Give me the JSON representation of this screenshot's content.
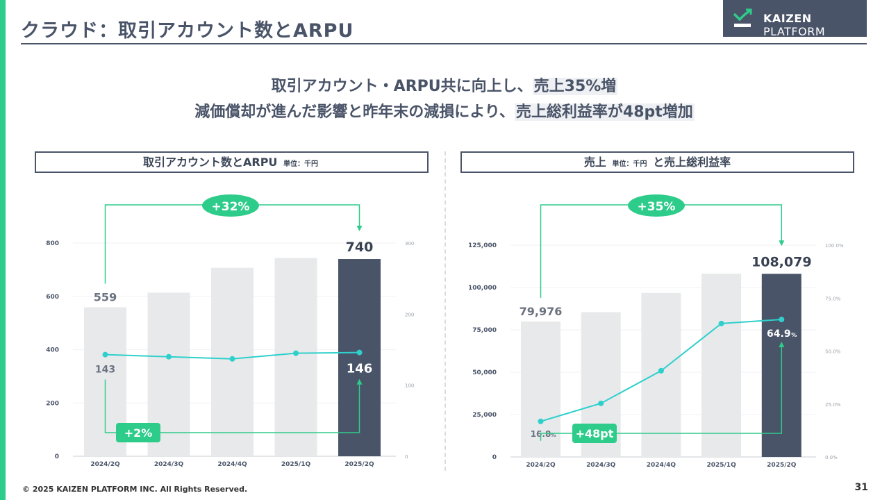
{
  "page": {
    "title": "クラウド：取引アカウント数とARPU",
    "headline_line1_pre": "取引アカウント・ARPU共に向上し、",
    "headline_line1_em": "売上35%増",
    "headline_line2_pre": "減価償却が進んだ影響と昨年末の減損により、",
    "headline_line2_em": "売上総利益率が48pt増加",
    "footer": "© 2025 KAIZEN PLATFORM INC. All Rights Reserved.",
    "page_number": "31"
  },
  "logo": {
    "brand_bold": "KAIZEN",
    "brand_rest": "PLATFORM"
  },
  "colors": {
    "accent_green": "#2ecc8a",
    "navy": "#4a5468",
    "bar_gray": "#e8e9eb",
    "bar_highlight": "#4a5468",
    "line_cyan": "#2fd0cc"
  },
  "left_chart_header": {
    "title": "取引アカウント数とARPU",
    "unit": "単位：千円"
  },
  "right_chart_header": {
    "title_pre": "売上",
    "unit": "単位：千円",
    "title_post": "と売上総利益率"
  },
  "chart_data": [
    {
      "type": "bar",
      "categories": [
        "2024/2Q",
        "2024/3Q",
        "2024/4Q",
        "2025/1Q",
        "2025/2Q"
      ],
      "series": [
        {
          "values": [
            559,
            614,
            707,
            744,
            740
          ],
          "axis": "left"
        },
        {
          "type": "line",
          "values": [
            143,
            140,
            137,
            145,
            146
          ],
          "axis": "right"
        }
      ],
      "ylim": [
        0,
        800
      ],
      "y_ticks": [
        "0",
        "200",
        "400",
        "600",
        "800"
      ],
      "y2lim": [
        0,
        300
      ],
      "y2_ticks": [
        "0",
        "100",
        "200",
        "300"
      ],
      "bar_labels": {
        "first": "559",
        "last": "740"
      },
      "line_labels": {
        "first": "143",
        "last": "146"
      },
      "annotations": {
        "bar_growth": "+32%",
        "line_growth": "+2%"
      },
      "grid": true
    },
    {
      "type": "bar",
      "categories": [
        "2024/2Q",
        "2024/3Q",
        "2024/4Q",
        "2025/1Q",
        "2025/2Q"
      ],
      "series": [
        {
          "values": [
            79976,
            85500,
            96800,
            108200,
            108079
          ],
          "axis": "left"
        },
        {
          "type": "line",
          "values": [
            16.8,
            25.3,
            40.7,
            63.0,
            64.9
          ],
          "axis": "right"
        }
      ],
      "ylim": [
        0,
        125000
      ],
      "y_ticks": [
        "0",
        "25,000",
        "50,000",
        "75,000",
        "100,000",
        "125,000"
      ],
      "y2lim": [
        0,
        100
      ],
      "y2_ticks": [
        "0.0%",
        "25.0%",
        "50.0%",
        "75.0%",
        "100.0%"
      ],
      "bar_labels": {
        "first": "79,976",
        "last": "108,079"
      },
      "line_labels": {
        "first": "16.8",
        "first_unit": "%",
        "last": "64.9",
        "last_unit": "%"
      },
      "annotations": {
        "bar_growth": "+35%",
        "line_growth": "+48pt"
      },
      "grid": true
    }
  ]
}
